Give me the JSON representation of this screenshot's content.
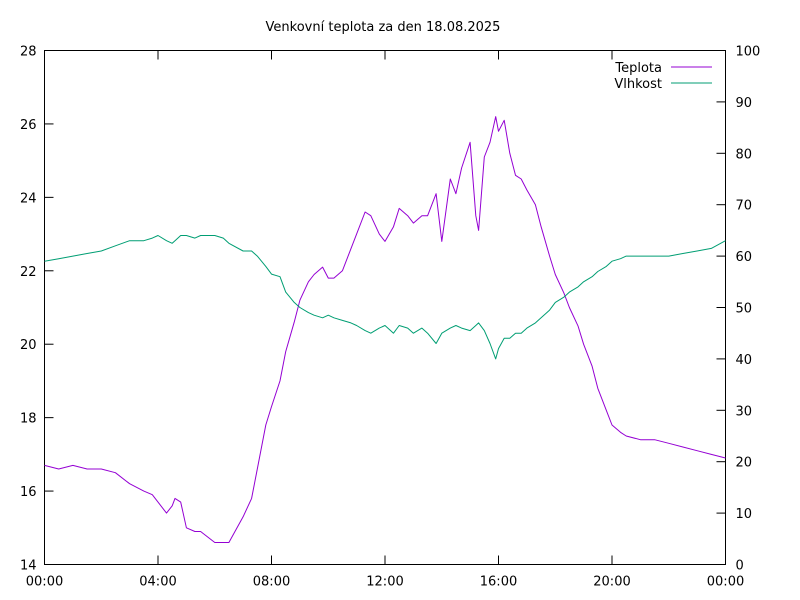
{
  "chart_data": {
    "type": "line",
    "title": "Venkovní teplota za den 18.08.2025",
    "x_ticks": [
      "00:00",
      "04:00",
      "08:00",
      "12:00",
      "16:00",
      "20:00",
      "00:00"
    ],
    "x_range_hours": [
      0,
      24
    ],
    "y_left": {
      "range": [
        14,
        28
      ],
      "ticks": [
        14,
        16,
        18,
        20,
        22,
        24,
        26,
        28
      ]
    },
    "y_right": {
      "range": [
        0,
        100
      ],
      "ticks": [
        0,
        10,
        20,
        30,
        40,
        50,
        60,
        70,
        80,
        90,
        100
      ]
    },
    "grid": false,
    "legend_position": "top-right",
    "series": [
      {
        "name": "Teplota",
        "axis": "left",
        "color": "#9400d3",
        "x": [
          0,
          0.5,
          1.0,
          1.5,
          2.0,
          2.5,
          3.0,
          3.5,
          3.8,
          4.0,
          4.3,
          4.5,
          4.6,
          4.8,
          5.0,
          5.3,
          5.5,
          6.0,
          6.3,
          6.5,
          7.0,
          7.3,
          7.5,
          7.8,
          8.0,
          8.3,
          8.5,
          8.8,
          9.0,
          9.3,
          9.5,
          9.8,
          10.0,
          10.2,
          10.5,
          10.8,
          11.0,
          11.3,
          11.5,
          11.8,
          12.0,
          12.3,
          12.5,
          12.8,
          13.0,
          13.3,
          13.5,
          13.8,
          14.0,
          14.3,
          14.5,
          14.7,
          15.0,
          15.2,
          15.3,
          15.5,
          15.7,
          15.9,
          16.0,
          16.2,
          16.4,
          16.6,
          16.8,
          17.0,
          17.3,
          17.5,
          17.8,
          18.0,
          18.3,
          18.5,
          18.8,
          19.0,
          19.3,
          19.5,
          19.8,
          20.0,
          20.3,
          20.5,
          21.0,
          21.5,
          22.0,
          22.5,
          23.0,
          23.5,
          24.0
        ],
        "values": [
          16.7,
          16.6,
          16.7,
          16.6,
          16.6,
          16.5,
          16.2,
          16.0,
          15.9,
          15.7,
          15.4,
          15.6,
          15.8,
          15.7,
          15.0,
          14.9,
          14.9,
          14.6,
          14.6,
          14.6,
          15.3,
          15.8,
          16.6,
          17.8,
          18.3,
          19.0,
          19.8,
          20.6,
          21.2,
          21.7,
          21.9,
          22.1,
          21.8,
          21.8,
          22.0,
          22.6,
          23.0,
          23.6,
          23.5,
          23.0,
          22.8,
          23.2,
          23.7,
          23.5,
          23.3,
          23.5,
          23.5,
          24.1,
          22.8,
          24.5,
          24.1,
          24.8,
          25.5,
          23.5,
          23.1,
          25.1,
          25.5,
          26.2,
          25.8,
          26.1,
          25.2,
          24.6,
          24.5,
          24.2,
          23.8,
          23.2,
          22.4,
          21.9,
          21.4,
          21.0,
          20.5,
          20.0,
          19.4,
          18.8,
          18.2,
          17.8,
          17.6,
          17.5,
          17.4,
          17.4,
          17.3,
          17.2,
          17.1,
          17.0,
          16.9
        ]
      },
      {
        "name": "Vlhkost",
        "axis": "right",
        "color": "#009e73",
        "x": [
          0,
          0.5,
          1.0,
          1.5,
          2.0,
          2.5,
          3.0,
          3.5,
          3.8,
          4.0,
          4.3,
          4.5,
          4.6,
          4.8,
          5.0,
          5.3,
          5.5,
          6.0,
          6.3,
          6.5,
          7.0,
          7.3,
          7.5,
          7.8,
          8.0,
          8.3,
          8.5,
          8.8,
          9.0,
          9.3,
          9.5,
          9.8,
          10.0,
          10.2,
          10.5,
          10.8,
          11.0,
          11.3,
          11.5,
          11.8,
          12.0,
          12.3,
          12.5,
          12.8,
          13.0,
          13.3,
          13.5,
          13.8,
          14.0,
          14.3,
          14.5,
          14.7,
          15.0,
          15.2,
          15.3,
          15.5,
          15.7,
          15.9,
          16.0,
          16.2,
          16.4,
          16.6,
          16.8,
          17.0,
          17.3,
          17.5,
          17.8,
          18.0,
          18.3,
          18.5,
          18.8,
          19.0,
          19.3,
          19.5,
          19.8,
          20.0,
          20.3,
          20.5,
          21.0,
          21.5,
          22.0,
          22.5,
          23.0,
          23.5,
          24.0
        ],
        "values": [
          59,
          59.5,
          60,
          60.5,
          61,
          62,
          63,
          63,
          63.5,
          64,
          63,
          62.5,
          63,
          64,
          64,
          63.5,
          64,
          64,
          63.5,
          62.5,
          61,
          61,
          60,
          58,
          56.5,
          56,
          53,
          51,
          50,
          49,
          48.5,
          48,
          48.5,
          48,
          47.5,
          47,
          46.5,
          45.5,
          45,
          46,
          46.5,
          45,
          46.5,
          46,
          45,
          46,
          45,
          43,
          45,
          46,
          46.5,
          46,
          45.5,
          46.5,
          47,
          45.5,
          43,
          40,
          42,
          44,
          44,
          45,
          45,
          46,
          47,
          48,
          49.5,
          51,
          52,
          53,
          54,
          55,
          56,
          57,
          58,
          59,
          59.5,
          60,
          60,
          60,
          60,
          60.5,
          61,
          61.5,
          63
        ]
      }
    ]
  }
}
